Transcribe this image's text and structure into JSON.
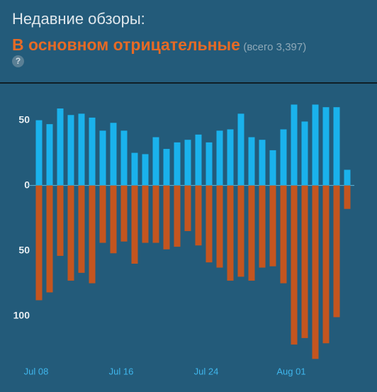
{
  "header": {
    "label": "Недавние обзоры:",
    "summary": "В основном отрицательные",
    "total": "(всего 3,397)",
    "help_icon": "?"
  },
  "chart_data": {
    "type": "bar",
    "categories": [
      "Jul 08",
      null,
      null,
      null,
      null,
      null,
      null,
      null,
      "Jul 16",
      null,
      null,
      null,
      null,
      null,
      null,
      null,
      "Jul 24",
      null,
      null,
      null,
      null,
      null,
      null,
      null,
      "Aug 01",
      null,
      null,
      null,
      null,
      null
    ],
    "series": [
      {
        "color": "#1ab2ec",
        "values": [
          50,
          47,
          59,
          54,
          55,
          52,
          42,
          48,
          42,
          25,
          24,
          37,
          28,
          33,
          35,
          39,
          33,
          42,
          43,
          55,
          37,
          35,
          27,
          43,
          62,
          49,
          62,
          60,
          60,
          12
        ]
      },
      {
        "color": "#c4551f",
        "values": [
          -88,
          -82,
          -54,
          -73,
          -67,
          -75,
          -44,
          -52,
          -43,
          -60,
          -44,
          -44,
          -49,
          -47,
          -35,
          -46,
          -59,
          -63,
          -73,
          -70,
          -73,
          -63,
          -62,
          -75,
          -122,
          -117,
          -133,
          -121,
          -101,
          -18
        ]
      }
    ],
    "ylim": [
      -135,
      65
    ],
    "yticks": [
      50,
      0,
      {
        "value": -50,
        "label": "50"
      },
      {
        "value": -100,
        "label": "100"
      }
    ],
    "zero_line": true
  }
}
